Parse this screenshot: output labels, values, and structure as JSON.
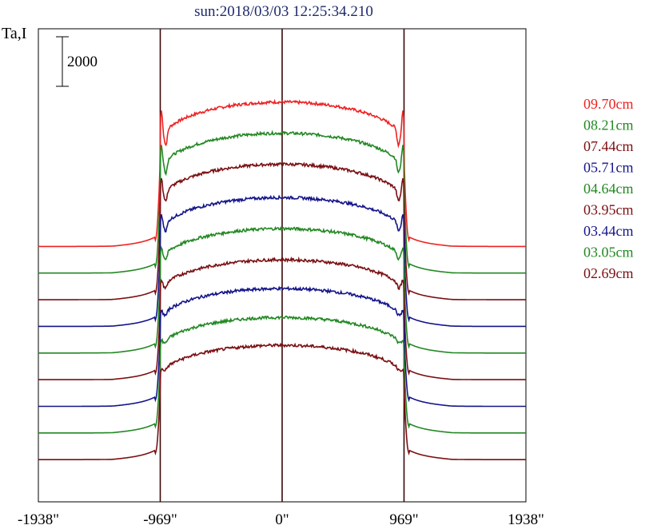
{
  "chart_data": {
    "type": "line",
    "title": "sun:2018/03/03 12:25:34.210",
    "ylabel": "Ta,I",
    "xlim": [
      -1938,
      1938
    ],
    "ylim": [
      -800,
      20500
    ],
    "x_ticks": [
      {
        "value": -1938,
        "label": "-1938\""
      },
      {
        "value": -969,
        "label": "-969\""
      },
      {
        "value": 0,
        "label": "0\""
      },
      {
        "value": 969,
        "label": "969\""
      },
      {
        "value": 1938,
        "label": "1938\""
      }
    ],
    "vertical_lines": [
      -969,
      0,
      969
    ],
    "scale_bar": {
      "value": 2000,
      "label": "2000"
    },
    "series": [
      {
        "name": "09.70cm",
        "color": "#ee2222",
        "offset": 10700,
        "disk": 6500,
        "limb_peak": 1200
      },
      {
        "name": "08.21cm",
        "color": "#228822",
        "offset": 9500,
        "disk": 6300,
        "limb_peak": 1000
      },
      {
        "name": "07.44cm",
        "color": "#7a0f12",
        "offset": 8300,
        "disk": 6100,
        "limb_peak": 850
      },
      {
        "name": "05.71cm",
        "color": "#14148a",
        "offset": 7100,
        "disk": 5800,
        "limb_peak": 650
      },
      {
        "name": "04.64cm",
        "color": "#228822",
        "offset": 5900,
        "disk": 5600,
        "limb_peak": 500
      },
      {
        "name": "03.95cm",
        "color": "#7a0f12",
        "offset": 4700,
        "disk": 5400,
        "limb_peak": 380
      },
      {
        "name": "03.44cm",
        "color": "#14148a",
        "offset": 3500,
        "disk": 5300,
        "limb_peak": 300
      },
      {
        "name": "03.05cm",
        "color": "#228822",
        "offset": 2300,
        "disk": 5200,
        "limb_peak": 220
      },
      {
        "name": "02.69cm",
        "color": "#7a0f12",
        "offset": 1100,
        "disk": 5150,
        "limb_peak": 150
      }
    ]
  }
}
